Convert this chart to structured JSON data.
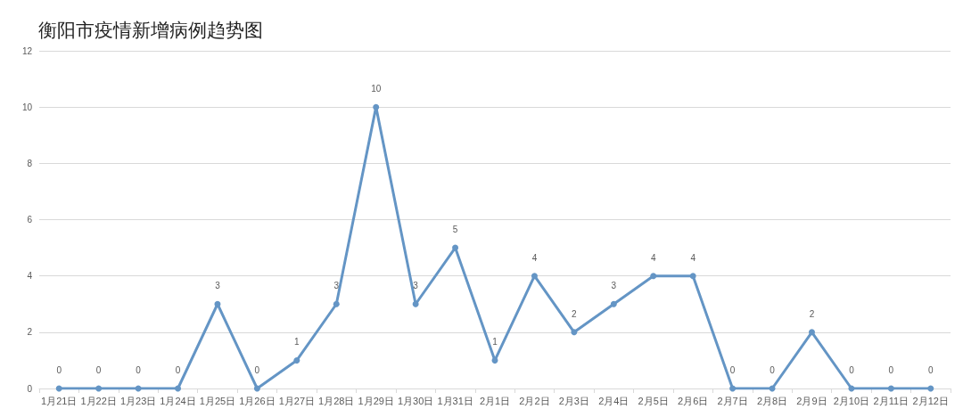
{
  "chart_data": {
    "type": "line",
    "title": "衡阳市疫情新增病例趋势图",
    "categories": [
      "1月21日",
      "1月22日",
      "1月23日",
      "1月24日",
      "1月25日",
      "1月26日",
      "1月27日",
      "1月28日",
      "1月29日",
      "1月30日",
      "1月31日",
      "2月1日",
      "2月2日",
      "2月3日",
      "2月4日",
      "2月5日",
      "2月6日",
      "2月7日",
      "2月8日",
      "2月9日",
      "2月10日",
      "2月11日",
      "2月12日"
    ],
    "values": [
      0,
      0,
      0,
      0,
      3,
      0,
      1,
      3,
      10,
      3,
      5,
      1,
      4,
      2,
      3,
      4,
      4,
      0,
      0,
      2,
      0,
      0,
      0
    ],
    "color": "#6495c5",
    "ylim": [
      0,
      12
    ],
    "yticks": [
      0,
      2,
      4,
      6,
      8,
      10,
      12
    ],
    "grid": "y",
    "data_labels": true,
    "marker": "circle"
  }
}
